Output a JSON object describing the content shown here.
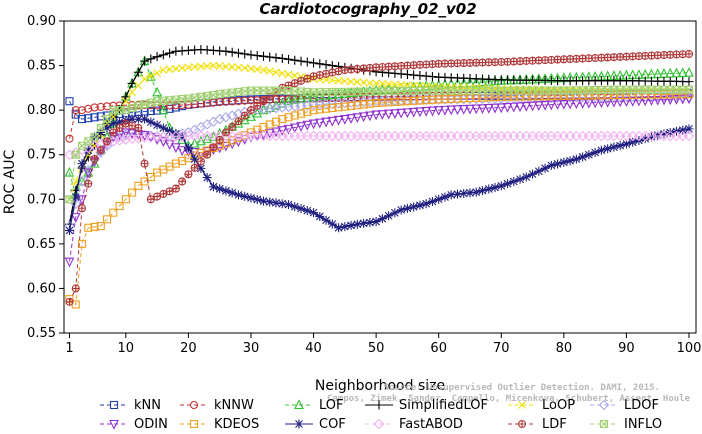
{
  "chart_data": {
    "type": "line",
    "title": "Cardiotocography_02_v02",
    "xlabel": "Neighborhood size",
    "ylabel": "ROC AUC",
    "xlim": [
      1,
      100
    ],
    "ylim": [
      0.55,
      0.9
    ],
    "xticks": [
      1,
      10,
      20,
      30,
      40,
      50,
      60,
      70,
      80,
      90,
      100
    ],
    "xtick_labels": [
      "1",
      "10",
      "20",
      "30",
      "40",
      "50",
      "60",
      "70",
      "80",
      "90",
      "100"
    ],
    "yticks": [
      0.55,
      0.6,
      0.65,
      0.7,
      0.75,
      0.8,
      0.85,
      0.9
    ],
    "ytick_labels": [
      "0.55",
      "0.60",
      "0.65",
      "0.70",
      "0.75",
      "0.80",
      "0.85",
      "0.90"
    ],
    "grid": false,
    "legend_position": "bottom",
    "watermark": [
      "Source: Unsupervised Outlier Detection. DAMI, 2015.",
      "Campos, Zimek, Sander, Campello, Micenkova, Schubert, Assent, Houle"
    ],
    "series": [
      {
        "name": "kNN",
        "color": "#1e3fb0",
        "marker": "square",
        "dash": "dashed",
        "points": [
          [
            1,
            0.81
          ],
          [
            2,
            0.795
          ],
          [
            3,
            0.79
          ],
          [
            5,
            0.792
          ],
          [
            8,
            0.795
          ],
          [
            12,
            0.798
          ],
          [
            16,
            0.8
          ],
          [
            20,
            0.806
          ],
          [
            25,
            0.81
          ],
          [
            30,
            0.812
          ],
          [
            40,
            0.814
          ],
          [
            50,
            0.815
          ],
          [
            60,
            0.816
          ],
          [
            70,
            0.816
          ],
          [
            80,
            0.817
          ],
          [
            90,
            0.818
          ],
          [
            100,
            0.819
          ]
        ]
      },
      {
        "name": "kNNW",
        "color": "#c83030",
        "marker": "circle",
        "dash": "dashed",
        "points": [
          [
            1,
            0.768
          ],
          [
            2,
            0.8
          ],
          [
            3,
            0.8
          ],
          [
            5,
            0.803
          ],
          [
            8,
            0.805
          ],
          [
            12,
            0.806
          ],
          [
            16,
            0.805
          ],
          [
            20,
            0.806
          ],
          [
            25,
            0.809
          ],
          [
            30,
            0.811
          ],
          [
            40,
            0.813
          ],
          [
            50,
            0.815
          ],
          [
            60,
            0.816
          ],
          [
            70,
            0.817
          ],
          [
            80,
            0.817
          ],
          [
            90,
            0.818
          ],
          [
            100,
            0.818
          ]
        ]
      },
      {
        "name": "LOF",
        "color": "#30c030",
        "marker": "triangle-up",
        "dash": "dashed",
        "points": [
          [
            1,
            0.73
          ],
          [
            2,
            0.705
          ],
          [
            3,
            0.72
          ],
          [
            5,
            0.74
          ],
          [
            7,
            0.77
          ],
          [
            9,
            0.8
          ],
          [
            11,
            0.83
          ],
          [
            13,
            0.855
          ],
          [
            15,
            0.82
          ],
          [
            17,
            0.78
          ],
          [
            20,
            0.76
          ],
          [
            24,
            0.77
          ],
          [
            28,
            0.785
          ],
          [
            32,
            0.8
          ],
          [
            36,
            0.81
          ],
          [
            40,
            0.815
          ],
          [
            50,
            0.822
          ],
          [
            60,
            0.828
          ],
          [
            70,
            0.833
          ],
          [
            80,
            0.836
          ],
          [
            90,
            0.839
          ],
          [
            100,
            0.842
          ]
        ]
      },
      {
        "name": "SimplifiedLOF",
        "color": "#000000",
        "marker": "plus",
        "dash": "solid",
        "points": [
          [
            1,
            0.672
          ],
          [
            2,
            0.71
          ],
          [
            3,
            0.735
          ],
          [
            5,
            0.76
          ],
          [
            7,
            0.785
          ],
          [
            9,
            0.8
          ],
          [
            11,
            0.83
          ],
          [
            13,
            0.855
          ],
          [
            15,
            0.86
          ],
          [
            18,
            0.866
          ],
          [
            22,
            0.868
          ],
          [
            26,
            0.866
          ],
          [
            30,
            0.862
          ],
          [
            35,
            0.858
          ],
          [
            40,
            0.853
          ],
          [
            45,
            0.848
          ],
          [
            50,
            0.843
          ],
          [
            55,
            0.84
          ],
          [
            60,
            0.837
          ],
          [
            70,
            0.834
          ],
          [
            80,
            0.833
          ],
          [
            90,
            0.833
          ],
          [
            100,
            0.832
          ]
        ]
      },
      {
        "name": "LoOP",
        "color": "#f0e000",
        "marker": "x",
        "dash": "dashed",
        "points": [
          [
            1,
            0.7
          ],
          [
            2,
            0.72
          ],
          [
            3,
            0.74
          ],
          [
            5,
            0.76
          ],
          [
            7,
            0.785
          ],
          [
            9,
            0.8
          ],
          [
            11,
            0.82
          ],
          [
            13,
            0.835
          ],
          [
            16,
            0.845
          ],
          [
            20,
            0.848
          ],
          [
            24,
            0.85
          ],
          [
            28,
            0.848
          ],
          [
            32,
            0.845
          ],
          [
            36,
            0.84
          ],
          [
            40,
            0.835
          ],
          [
            50,
            0.83
          ],
          [
            60,
            0.826
          ],
          [
            70,
            0.824
          ],
          [
            80,
            0.823
          ],
          [
            90,
            0.823
          ],
          [
            100,
            0.823
          ]
        ]
      },
      {
        "name": "LDOF",
        "color": "#a8a8e8",
        "marker": "diamond",
        "dash": "dashed",
        "points": [
          [
            1,
            0.67
          ],
          [
            3,
            0.72
          ],
          [
            5,
            0.745
          ],
          [
            7,
            0.76
          ],
          [
            9,
            0.77
          ],
          [
            11,
            0.775
          ],
          [
            13,
            0.772
          ],
          [
            16,
            0.77
          ],
          [
            20,
            0.775
          ],
          [
            25,
            0.79
          ],
          [
            30,
            0.8
          ],
          [
            40,
            0.806
          ],
          [
            50,
            0.81
          ],
          [
            60,
            0.812
          ],
          [
            70,
            0.813
          ],
          [
            80,
            0.814
          ],
          [
            90,
            0.815
          ],
          [
            100,
            0.815
          ]
        ]
      },
      {
        "name": "ODIN",
        "color": "#9030d0",
        "marker": "triangle-down",
        "dash": "dashed",
        "points": [
          [
            1,
            0.63
          ],
          [
            2,
            0.68
          ],
          [
            3,
            0.7
          ],
          [
            4,
            0.73
          ],
          [
            6,
            0.755
          ],
          [
            8,
            0.77
          ],
          [
            10,
            0.775
          ],
          [
            13,
            0.772
          ],
          [
            16,
            0.765
          ],
          [
            19,
            0.755
          ],
          [
            22,
            0.752
          ],
          [
            26,
            0.76
          ],
          [
            30,
            0.77
          ],
          [
            40,
            0.785
          ],
          [
            50,
            0.795
          ],
          [
            60,
            0.8
          ],
          [
            70,
            0.803
          ],
          [
            80,
            0.807
          ],
          [
            90,
            0.81
          ],
          [
            100,
            0.813
          ]
        ]
      },
      {
        "name": "KDEOS",
        "color": "#f0a020",
        "marker": "square",
        "dash": "dashed",
        "points": [
          [
            1,
            0.588
          ],
          [
            2,
            0.582
          ],
          [
            3,
            0.65
          ],
          [
            4,
            0.668
          ],
          [
            6,
            0.67
          ],
          [
            8,
            0.685
          ],
          [
            10,
            0.7
          ],
          [
            12,
            0.715
          ],
          [
            15,
            0.73
          ],
          [
            18,
            0.74
          ],
          [
            22,
            0.752
          ],
          [
            26,
            0.763
          ],
          [
            30,
            0.775
          ],
          [
            35,
            0.79
          ],
          [
            40,
            0.8
          ],
          [
            50,
            0.808
          ],
          [
            60,
            0.812
          ],
          [
            70,
            0.815
          ],
          [
            80,
            0.816
          ],
          [
            90,
            0.817
          ],
          [
            100,
            0.818
          ]
        ]
      },
      {
        "name": "COF",
        "color": "#202080",
        "marker": "star",
        "dash": "solid",
        "points": [
          [
            1,
            0.665
          ],
          [
            3,
            0.74
          ],
          [
            5,
            0.77
          ],
          [
            8,
            0.785
          ],
          [
            11,
            0.79
          ],
          [
            13,
            0.79
          ],
          [
            16,
            0.78
          ],
          [
            19,
            0.77
          ],
          [
            21,
            0.745
          ],
          [
            24,
            0.714
          ],
          [
            28,
            0.705
          ],
          [
            32,
            0.698
          ],
          [
            36,
            0.694
          ],
          [
            40,
            0.685
          ],
          [
            44,
            0.668
          ],
          [
            47,
            0.672
          ],
          [
            50,
            0.675
          ],
          [
            54,
            0.688
          ],
          [
            58,
            0.695
          ],
          [
            62,
            0.705
          ],
          [
            66,
            0.708
          ],
          [
            70,
            0.715
          ],
          [
            74,
            0.725
          ],
          [
            78,
            0.738
          ],
          [
            82,
            0.745
          ],
          [
            86,
            0.755
          ],
          [
            90,
            0.762
          ],
          [
            95,
            0.772
          ],
          [
            100,
            0.779
          ]
        ]
      },
      {
        "name": "FastABOD",
        "color": "#f0b0f0",
        "marker": "diamond",
        "dash": "dashed",
        "points": [
          [
            1,
            0.75
          ],
          [
            3,
            0.755
          ],
          [
            5,
            0.76
          ],
          [
            8,
            0.765
          ],
          [
            11,
            0.768
          ],
          [
            15,
            0.77
          ],
          [
            20,
            0.771
          ],
          [
            30,
            0.771
          ],
          [
            40,
            0.771
          ],
          [
            50,
            0.771
          ],
          [
            60,
            0.771
          ],
          [
            70,
            0.771
          ],
          [
            80,
            0.771
          ],
          [
            90,
            0.771
          ],
          [
            100,
            0.771
          ]
        ]
      },
      {
        "name": "LDF",
        "color": "#b03838",
        "marker": "circle-plus",
        "dash": "dashed",
        "points": [
          [
            1,
            0.585
          ],
          [
            2,
            0.6
          ],
          [
            3,
            0.69
          ],
          [
            5,
            0.745
          ],
          [
            8,
            0.775
          ],
          [
            10,
            0.785
          ],
          [
            12,
            0.78
          ],
          [
            14,
            0.7
          ],
          [
            16,
            0.706
          ],
          [
            18,
            0.712
          ],
          [
            20,
            0.728
          ],
          [
            23,
            0.75
          ],
          [
            26,
            0.775
          ],
          [
            30,
            0.8
          ],
          [
            35,
            0.825
          ],
          [
            40,
            0.838
          ],
          [
            45,
            0.845
          ],
          [
            50,
            0.848
          ],
          [
            55,
            0.85
          ],
          [
            60,
            0.852
          ],
          [
            70,
            0.854
          ],
          [
            80,
            0.857
          ],
          [
            90,
            0.86
          ],
          [
            100,
            0.863
          ]
        ]
      },
      {
        "name": "INFLO",
        "color": "#a0d070",
        "marker": "square-x",
        "dash": "dashed",
        "points": [
          [
            1,
            0.7
          ],
          [
            2,
            0.75
          ],
          [
            3,
            0.76
          ],
          [
            5,
            0.77
          ],
          [
            8,
            0.8
          ],
          [
            10,
            0.8
          ],
          [
            12,
            0.805
          ],
          [
            15,
            0.81
          ],
          [
            20,
            0.813
          ],
          [
            25,
            0.818
          ],
          [
            30,
            0.822
          ],
          [
            35,
            0.822
          ],
          [
            40,
            0.82
          ],
          [
            50,
            0.821
          ],
          [
            60,
            0.822
          ],
          [
            70,
            0.822
          ],
          [
            80,
            0.822
          ],
          [
            90,
            0.823
          ],
          [
            100,
            0.823
          ]
        ]
      }
    ]
  }
}
